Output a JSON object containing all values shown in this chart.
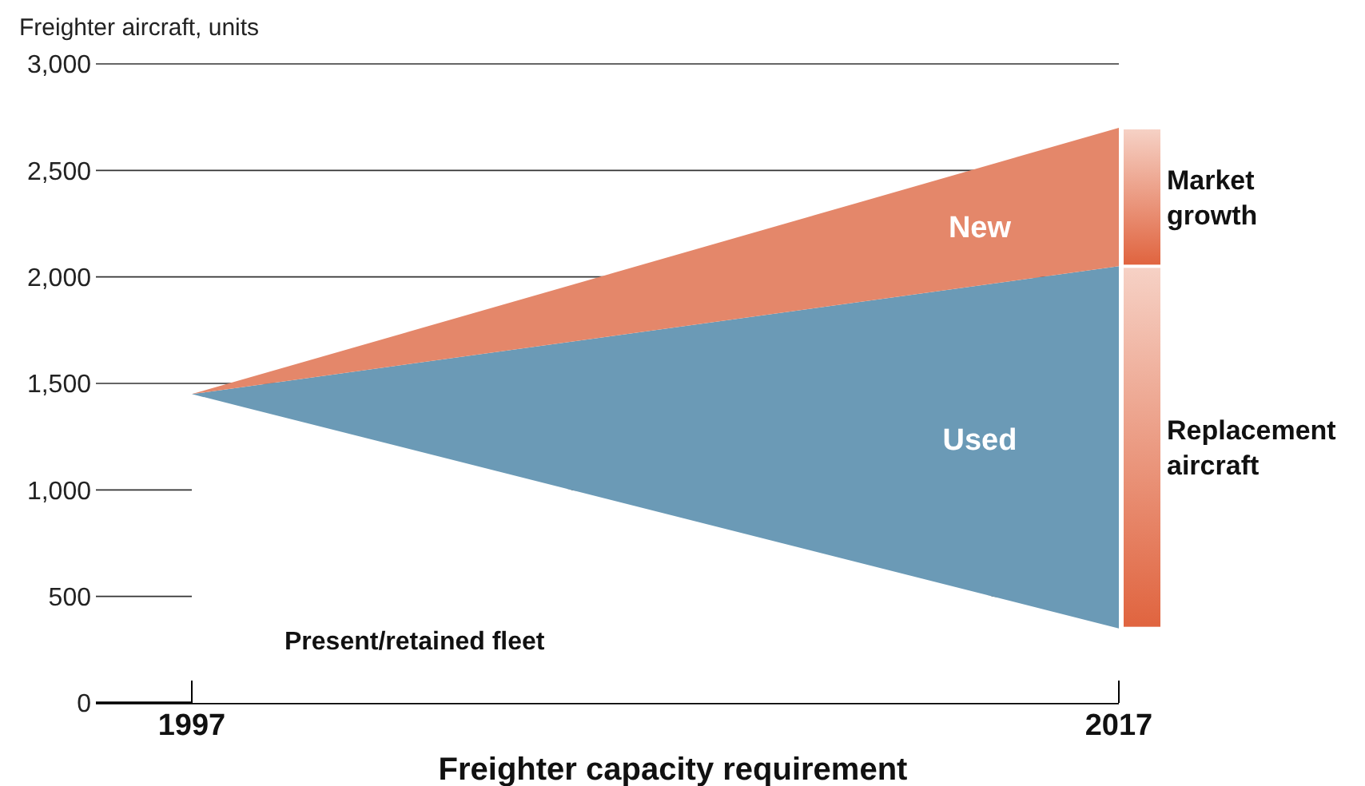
{
  "chart_data": {
    "type": "area",
    "stacked": true,
    "ylabel": "Freighter aircraft, units",
    "xlabel": "Freighter capacity requirement",
    "x": [
      1997,
      2017
    ],
    "xlim": [
      1995,
      2017
    ],
    "xticks": [
      1997,
      2017
    ],
    "ylim": [
      0,
      3000
    ],
    "yticks": [
      0,
      {
        "value": 500,
        "label": "500"
      },
      {
        "value": 1000,
        "label": "1,000"
      },
      {
        "value": 1500,
        "label": "1,500"
      },
      {
        "value": 2000,
        "label": "2,000"
      },
      {
        "value": 2500,
        "label": "2,500"
      },
      {
        "value": 3000,
        "label": "3,000"
      }
    ],
    "grid": "y",
    "series": [
      {
        "name": "Present/retained fleet",
        "color": "#ffffff",
        "values": [
          1450,
          350
        ]
      },
      {
        "name": "Used",
        "color": "#6b9ab6",
        "values": [
          0,
          1700
        ]
      },
      {
        "name": "New",
        "color": "#e4876a",
        "values": [
          0,
          650
        ]
      }
    ],
    "annotations": [
      {
        "text": "Replacement aircraft",
        "x": 2017,
        "y": 1200
      },
      {
        "text": "Market growth",
        "x": 2017,
        "y": 2375
      }
    ]
  }
}
